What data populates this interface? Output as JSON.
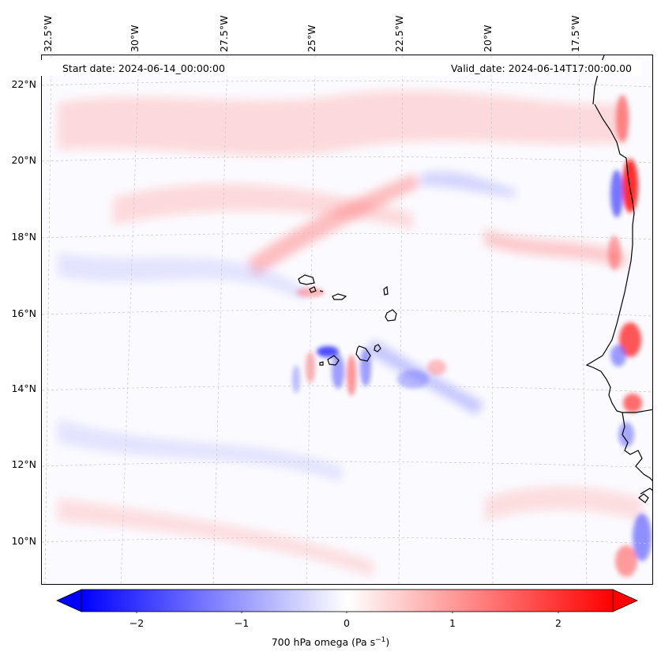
{
  "map": {
    "start_date": "Start date: 2024-06-14_00:00:00",
    "valid_date": "Valid_date: 2024-06-14T17:00:00.00",
    "lon_labels": [
      "32.5°W",
      "30°W",
      "27.5°W",
      "25°W",
      "22.5°W",
      "20°W",
      "17.5°W"
    ],
    "lat_labels": [
      "22°N",
      "20°N",
      "18°N",
      "16°N",
      "14°N",
      "12°N",
      "10°N"
    ],
    "grid": true,
    "colormap": "bwr",
    "colors": {
      "negative": "#0000ff",
      "neutral": "#ffffff",
      "positive": "#ff0000",
      "coastline": "#000000"
    }
  },
  "colorbar": {
    "ticks": [
      "−2",
      "−1",
      "0",
      "1",
      "2"
    ],
    "label_main": "700 hPa omega (Pa s",
    "label_exp": "−1",
    "label_close": ")",
    "range": [
      -2.6,
      2.6
    ],
    "extend": "both"
  }
}
